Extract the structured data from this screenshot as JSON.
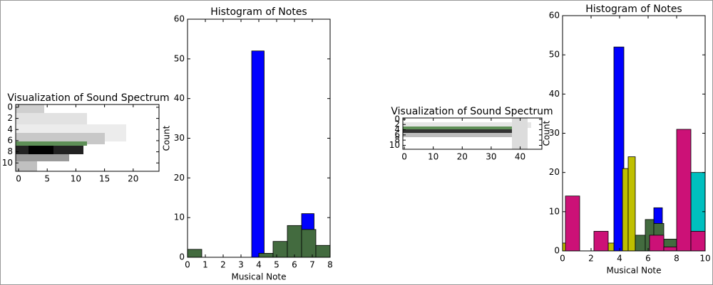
{
  "chart_data": [
    {
      "type": "image",
      "title": "Visualization of Sound Spectrum",
      "xlim": [
        -0.5,
        24.5
      ],
      "xticks": [
        0,
        5,
        10,
        15,
        20
      ],
      "ylim": [
        11.5,
        -0.5
      ],
      "yticks": [
        0,
        2,
        4,
        6,
        8,
        10
      ]
    },
    {
      "type": "histogram",
      "title": "Histogram of Notes",
      "x_label": "Musical Note",
      "y_label": "Count",
      "xlim": [
        0,
        8
      ],
      "xticks": [
        0,
        1,
        2,
        3,
        4,
        5,
        6,
        7,
        8
      ],
      "ylim": [
        0,
        60
      ],
      "yticks": [
        0,
        10,
        20,
        30,
        40,
        50,
        60
      ],
      "series": [
        {
          "color": "#0000ff",
          "bins": [
            3.6,
            4.3,
            5.0,
            5.7,
            6.4,
            7.1
          ],
          "values": [
            52,
            0,
            0,
            0,
            11
          ]
        },
        {
          "color": "#436b3f",
          "bins": [
            0,
            0.8,
            1.6,
            2.4,
            3.2,
            4.0,
            4.8,
            5.6,
            6.4,
            7.2,
            8.0
          ],
          "values": [
            2,
            0,
            0,
            0,
            0,
            1,
            4,
            8,
            7,
            3
          ]
        }
      ]
    },
    {
      "type": "image",
      "title": "Visualization of Sound Spectrum",
      "xlim": [
        -0.5,
        47.5
      ],
      "xticks": [
        0,
        10,
        20,
        30,
        40
      ],
      "ylim": [
        11.5,
        -0.5
      ],
      "yticks": [
        0,
        2,
        4,
        6,
        8,
        10
      ]
    },
    {
      "type": "histogram",
      "title": "Histogram of Notes",
      "x_label": "Musical Note",
      "y_label": "Count",
      "xlim": [
        0,
        10
      ],
      "xticks": [
        0,
        2,
        4,
        6,
        8,
        10
      ],
      "ylim": [
        0,
        60
      ],
      "yticks": [
        0,
        10,
        20,
        30,
        40,
        50,
        60
      ],
      "series": [
        {
          "color": "#00bfbf",
          "bins": [
            9.0,
            10.0
          ],
          "values": [
            20
          ]
        },
        {
          "color": "#0000ff",
          "bins": [
            3.6,
            4.3,
            6.4,
            7.0
          ],
          "values": [
            52,
            0,
            11
          ]
        },
        {
          "color": "#bfbf00",
          "bins": [
            0,
            0.4,
            3.2,
            3.6,
            4.2,
            4.6,
            5.1
          ],
          "values": [
            2,
            0,
            2,
            0,
            21,
            24
          ]
        },
        {
          "color": "#436b3f",
          "bins": [
            5.1,
            5.8,
            6.4,
            7.1,
            8.0
          ],
          "values": [
            4,
            8,
            7,
            3
          ]
        },
        {
          "color": "#cc1177",
          "bins": [
            0.2,
            1.2,
            2.2,
            3.2,
            4.2,
            5.2,
            6.1,
            7.1,
            8.0,
            9.0,
            10.0
          ],
          "values": [
            14,
            0,
            5,
            0,
            0,
            0,
            4,
            1,
            31,
            5
          ]
        }
      ]
    }
  ]
}
